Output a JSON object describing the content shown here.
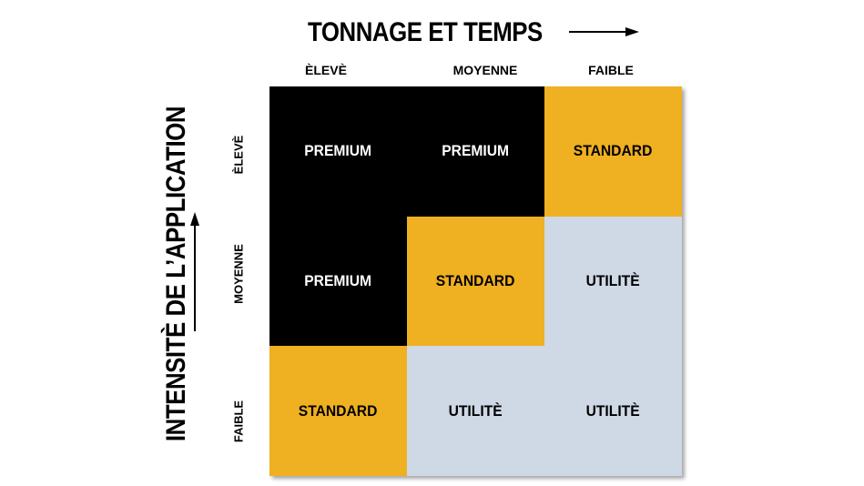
{
  "x_axis": {
    "title": "TONNAGE ET TEMPS",
    "icon": "arrow-right-icon"
  },
  "y_axis": {
    "title": "INTENSITÈ DE L’APPLICATION",
    "icon": "arrow-up-icon"
  },
  "columns": [
    "ÈLEVÈ",
    "MOYENNE",
    "FAIBLE"
  ],
  "rows": [
    "ÈLEVÈ",
    "MOYENNE",
    "FAIBLE"
  ],
  "colors": {
    "premium": "#000000",
    "standard": "#efb021",
    "utility": "#cfd9e6"
  },
  "cells": [
    [
      "PREMIUM",
      "PREMIUM",
      "STANDARD"
    ],
    [
      "PREMIUM",
      "STANDARD",
      "UTILITÈ"
    ],
    [
      "STANDARD",
      "UTILITÈ",
      "UTILITÈ"
    ]
  ]
}
